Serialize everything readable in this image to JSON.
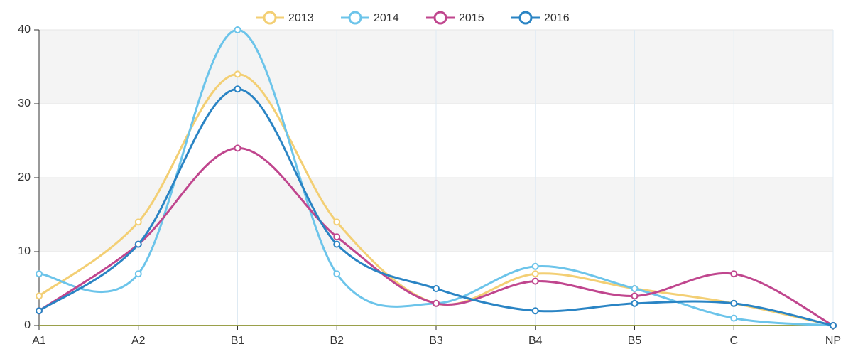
{
  "chart_data": {
    "type": "line",
    "categories": [
      "A1",
      "A2",
      "B1",
      "B2",
      "B3",
      "B4",
      "B5",
      "C",
      "NP"
    ],
    "series": [
      {
        "name": "2013",
        "color": "#f3cf74",
        "values": [
          4,
          14,
          34,
          14,
          3,
          7,
          5,
          3,
          0
        ]
      },
      {
        "name": "2014",
        "color": "#6cc4ea",
        "values": [
          7,
          7,
          40,
          7,
          3,
          8,
          5,
          1,
          0
        ]
      },
      {
        "name": "2015",
        "color": "#c0468e",
        "values": [
          2,
          11,
          24,
          12,
          3,
          6,
          4,
          7,
          0
        ]
      },
      {
        "name": "2016",
        "color": "#2a84c4",
        "values": [
          2,
          11,
          32,
          11,
          5,
          2,
          3,
          3,
          0
        ]
      }
    ],
    "ylim": [
      0,
      40
    ],
    "yticks": [
      0,
      10,
      20,
      30,
      40
    ],
    "grid": true,
    "legend": "top"
  }
}
